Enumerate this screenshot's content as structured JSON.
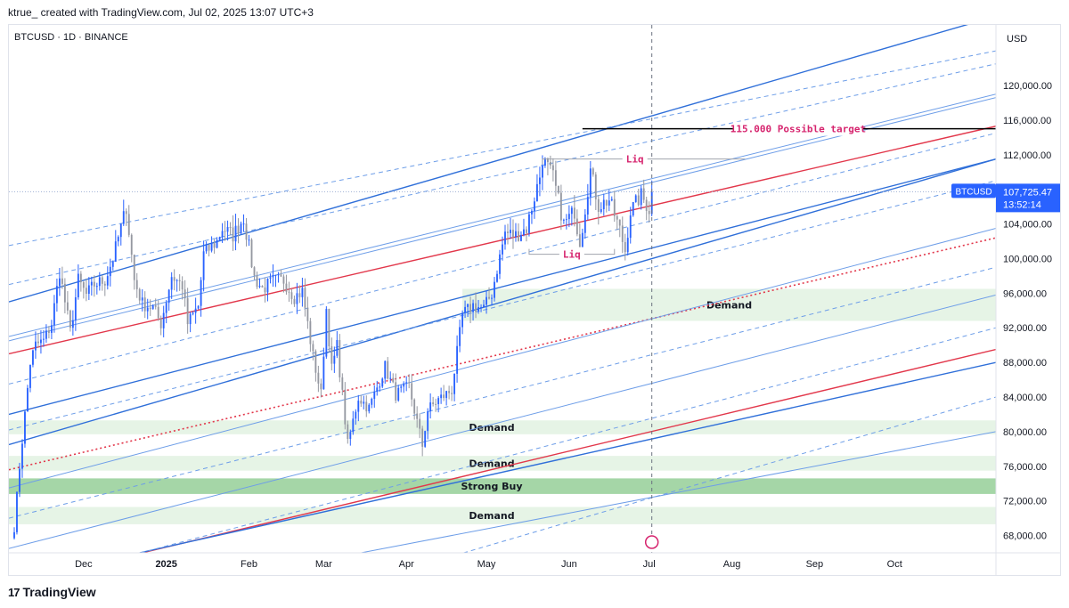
{
  "header": {
    "credit": "ktrue_ created with TradingView.com, Jul 02, 2025 13:07 UTC+3"
  },
  "footer": {
    "logo_text": "TradingView",
    "logo_mark": "17"
  },
  "colors": {
    "candle_up": "#2962ff",
    "candle_down": "#9598a1",
    "channel_blue": "#2f6fd9",
    "channel_light": "#6e9ee8",
    "red_line": "#e2374b",
    "demand_zone": "#e6f4e6",
    "strong_buy_zone": "#a5d6a7",
    "target_line": "#000000",
    "liq_line": "#a0a4ad",
    "pink_text": "#d6246e",
    "price_label": "#2962ff"
  },
  "chart_data": {
    "type": "candlestick",
    "symbol_label": "BTCUSD · 1D · BINANCE",
    "currency": "USD",
    "x_range": [
      "2024-11-03",
      "2025-11-08"
    ],
    "y_range": [
      66000,
      127000
    ],
    "y_ticks": [
      68000,
      72000,
      76000,
      80000,
      84000,
      88000,
      92000,
      96000,
      100000,
      104000,
      108000,
      112000,
      116000,
      120000
    ],
    "y_tick_labels": [
      "68,000.00",
      "72,000.00",
      "76,000.00",
      "80,000.00",
      "84,000.00",
      "88,000.00",
      "92,000.00",
      "96,000.00",
      "100,000.00",
      "104,000.00",
      "108,000.00",
      "112,000.00",
      "116,000.00",
      "120,000.00"
    ],
    "x_ticks": [
      {
        "date": "2024-12-01",
        "label": "Dec"
      },
      {
        "date": "2025-01-01",
        "label": "2025"
      },
      {
        "date": "2025-02-01",
        "label": "Feb"
      },
      {
        "date": "2025-03-01",
        "label": "Mar"
      },
      {
        "date": "2025-04-01",
        "label": "Apr"
      },
      {
        "date": "2025-05-01",
        "label": "May"
      },
      {
        "date": "2025-06-01",
        "label": "Jun"
      },
      {
        "date": "2025-07-01",
        "label": "Jul"
      },
      {
        "date": "2025-08-01",
        "label": "Aug"
      },
      {
        "date": "2025-09-01",
        "label": "Sep"
      },
      {
        "date": "2025-10-01",
        "label": "Oct"
      }
    ],
    "current_price": {
      "value": 107725.47,
      "symbol": "BTCUSD",
      "label": "107,725.47",
      "countdown": "13:52:14"
    },
    "cursor_date": "2025-07-02",
    "price_path": [
      [
        "2024-11-05",
        69000
      ],
      [
        "2024-11-07",
        76000
      ],
      [
        "2024-11-11",
        88000
      ],
      [
        "2024-11-13",
        90000
      ],
      [
        "2024-11-16",
        90500
      ],
      [
        "2024-11-19",
        92500
      ],
      [
        "2024-11-22",
        98500
      ],
      [
        "2024-11-26",
        91500
      ],
      [
        "2024-11-29",
        97500
      ],
      [
        "2024-12-02",
        95800
      ],
      [
        "2024-12-05",
        97000
      ],
      [
        "2024-12-09",
        97500
      ],
      [
        "2024-12-12",
        100000
      ],
      [
        "2024-12-17",
        106000
      ],
      [
        "2024-12-20",
        97500
      ],
      [
        "2024-12-23",
        94800
      ],
      [
        "2024-12-27",
        94300
      ],
      [
        "2024-12-30",
        92500
      ],
      [
        "2025-01-03",
        98000
      ],
      [
        "2025-01-07",
        96900
      ],
      [
        "2025-01-09",
        92500
      ],
      [
        "2025-01-13",
        94500
      ],
      [
        "2025-01-15",
        100500
      ],
      [
        "2025-01-20",
        102000
      ],
      [
        "2025-01-22",
        103500
      ],
      [
        "2025-01-26",
        102700
      ],
      [
        "2025-01-30",
        104700
      ],
      [
        "2025-02-03",
        97800
      ],
      [
        "2025-02-06",
        96500
      ],
      [
        "2025-02-10",
        97400
      ],
      [
        "2025-02-14",
        97500
      ],
      [
        "2025-02-18",
        95600
      ],
      [
        "2025-02-21",
        96200
      ],
      [
        "2025-02-25",
        88700
      ],
      [
        "2025-02-28",
        84300
      ],
      [
        "2025-03-02",
        94200
      ],
      [
        "2025-03-04",
        87200
      ],
      [
        "2025-03-06",
        89900
      ],
      [
        "2025-03-10",
        78500
      ],
      [
        "2025-03-14",
        84000
      ],
      [
        "2025-03-18",
        82700
      ],
      [
        "2025-03-24",
        87500
      ],
      [
        "2025-03-28",
        84300
      ],
      [
        "2025-04-02",
        85200
      ],
      [
        "2025-04-07",
        78400
      ],
      [
        "2025-04-09",
        82500
      ],
      [
        "2025-04-13",
        83700
      ],
      [
        "2025-04-18",
        84800
      ],
      [
        "2025-04-22",
        93500
      ],
      [
        "2025-04-26",
        94600
      ],
      [
        "2025-04-30",
        94200
      ],
      [
        "2025-05-03",
        96000
      ],
      [
        "2025-05-08",
        103000
      ],
      [
        "2025-05-12",
        102700
      ],
      [
        "2025-05-16",
        103500
      ],
      [
        "2025-05-21",
        109500
      ],
      [
        "2025-05-22",
        111600
      ],
      [
        "2025-05-26",
        109400
      ],
      [
        "2025-05-30",
        104000
      ],
      [
        "2025-06-03",
        105500
      ],
      [
        "2025-06-05",
        101500
      ],
      [
        "2025-06-09",
        110200
      ],
      [
        "2025-06-12",
        106100
      ],
      [
        "2025-06-16",
        106800
      ],
      [
        "2025-06-20",
        103300
      ],
      [
        "2025-06-22",
        100900
      ],
      [
        "2025-06-24",
        105500
      ],
      [
        "2025-06-28",
        107300
      ],
      [
        "2025-07-01",
        105700
      ],
      [
        "2025-07-02",
        107725
      ]
    ],
    "zones": [
      {
        "label": "Demand",
        "type": "demand",
        "from": 92800,
        "to": 96500,
        "start": "2025-04-22",
        "end": "2025-11-08"
      },
      {
        "label": "Demand",
        "type": "demand",
        "from": 79700,
        "to": 81300,
        "start": "2024-11-03",
        "end": "2025-11-08"
      },
      {
        "label": "Demand",
        "type": "demand",
        "from": 75500,
        "to": 77200,
        "start": "2024-11-03",
        "end": "2025-11-08"
      },
      {
        "label": "Strong Buy",
        "type": "strong_buy",
        "from": 72800,
        "to": 74600,
        "start": "2024-11-03",
        "end": "2025-11-08"
      },
      {
        "label": "Demand",
        "type": "demand",
        "from": 69300,
        "to": 71300,
        "start": "2024-11-03",
        "end": "2025-11-08"
      }
    ],
    "annotations": [
      {
        "label": "115.000 Possible target",
        "type": "target",
        "value": 115000,
        "start": "2025-06-06",
        "end": "2025-11-08"
      },
      {
        "label": "Liq",
        "type": "liq_high",
        "value": 111500,
        "start": "2025-05-22",
        "end": "2025-08-06"
      },
      {
        "label": "Liq",
        "type": "liq_low",
        "value": 100500,
        "start": "2025-05-17",
        "end": "2025-06-18"
      }
    ],
    "trend_lines": [
      {
        "style": "solid",
        "color": "red",
        "p1": [
          "2024-11-03",
          89000
        ],
        "p2": [
          "2025-11-08",
          115300
        ]
      },
      {
        "style": "dotted",
        "color": "red",
        "p1": [
          "2024-11-03",
          75600
        ],
        "p2": [
          "2025-11-08",
          102400
        ]
      },
      {
        "style": "solid",
        "color": "red",
        "p1": [
          "2024-12-23",
          66000
        ],
        "p2": [
          "2025-11-08",
          89500
        ]
      },
      {
        "style": "solid",
        "color": "blue",
        "p1": [
          "2024-11-03",
          95000
        ],
        "p2": [
          "2025-11-08",
          128000
        ]
      },
      {
        "style": "solid",
        "color": "blue",
        "p1": [
          "2024-11-03",
          82000
        ],
        "p2": [
          "2025-11-08",
          111500
        ]
      },
      {
        "style": "solid",
        "color": "blue",
        "p1": [
          "2024-11-03",
          78500
        ],
        "p2": [
          "2025-11-08",
          111500
        ]
      },
      {
        "style": "solid",
        "color": "blue",
        "p1": [
          "2024-12-22",
          66000
        ],
        "p2": [
          "2025-11-08",
          88000
        ]
      },
      {
        "style": "solid",
        "color": "light",
        "p1": [
          "2024-11-03",
          91000
        ],
        "p2": [
          "2025-11-08",
          119000
        ]
      },
      {
        "style": "solid",
        "color": "light",
        "p1": [
          "2024-11-03",
          90500
        ],
        "p2": [
          "2025-11-08",
          118600
        ]
      },
      {
        "style": "solid",
        "color": "light",
        "p1": [
          "2024-11-03",
          73500
        ],
        "p2": [
          "2025-11-08",
          103500
        ]
      },
      {
        "style": "solid",
        "color": "light",
        "p1": [
          "2024-11-03",
          66500
        ],
        "p2": [
          "2025-11-08",
          95800
        ]
      },
      {
        "style": "solid",
        "color": "light",
        "p1": [
          "2025-03-15",
          66000
        ],
        "p2": [
          "2025-11-08",
          80000
        ]
      },
      {
        "style": "dashed",
        "color": "light",
        "p1": [
          "2024-11-03",
          101500
        ],
        "p2": [
          "2025-11-08",
          124000
        ]
      },
      {
        "style": "dashed",
        "color": "light",
        "p1": [
          "2024-11-03",
          97000
        ],
        "p2": [
          "2025-11-08",
          122500
        ]
      },
      {
        "style": "dashed",
        "color": "light",
        "p1": [
          "2024-11-03",
          85500
        ],
        "p2": [
          "2025-11-08",
          114500
        ]
      },
      {
        "style": "dashed",
        "color": "light",
        "p1": [
          "2024-11-03",
          80200
        ],
        "p2": [
          "2025-11-08",
          109000
        ]
      },
      {
        "style": "dashed",
        "color": "light",
        "p1": [
          "2024-11-03",
          70000
        ],
        "p2": [
          "2025-11-08",
          99000
        ]
      },
      {
        "style": "dashed",
        "color": "light",
        "p1": [
          "2024-11-03",
          62000
        ],
        "p2": [
          "2025-11-08",
          92000
        ]
      },
      {
        "style": "dashed",
        "color": "light",
        "p1": [
          "2025-02-15",
          60000
        ],
        "p2": [
          "2025-11-08",
          84000
        ]
      }
    ]
  }
}
